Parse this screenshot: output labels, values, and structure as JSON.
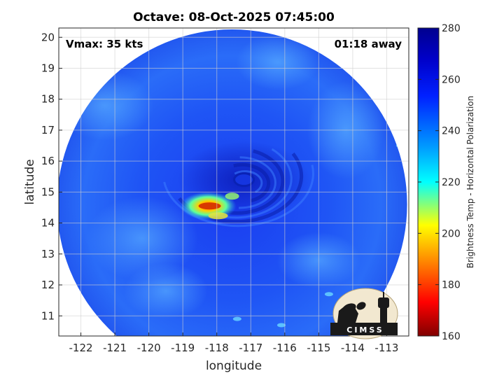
{
  "figure": {
    "title": "Octave: 08-Oct-2025 07:45:00",
    "annotations": {
      "vmax": "Vmax: 35 kts",
      "time_away": "01:18 away"
    },
    "logo_text": "CIMSS"
  },
  "map": {
    "x_axis": {
      "label": "longitude",
      "ticks": [
        -122,
        -121,
        -120,
        -119,
        -118,
        -117,
        -116,
        -115,
        -114,
        -113
      ],
      "range": [
        -122.65,
        -112.35
      ]
    },
    "y_axis": {
      "label": "latitude",
      "ticks": [
        11,
        12,
        13,
        14,
        15,
        16,
        17,
        18,
        19,
        20
      ],
      "range": [
        10.35,
        20.3
      ]
    },
    "grid": true,
    "swath": {
      "shape": "circle",
      "center_lon": -117.55,
      "center_lat": 14.6,
      "colormap": "jet"
    },
    "storm_center": {
      "lon": -117.2,
      "lat": 15.4
    },
    "cold_core": {
      "lon": -118.25,
      "lat": 14.55
    }
  },
  "colorbar": {
    "label": "Brightness Temp - Horizontal Polarization",
    "min": 160,
    "max": 280,
    "ticks": [
      160,
      180,
      200,
      220,
      240,
      260,
      280
    ],
    "colors": [
      "#800000",
      "#ff0000",
      "#ffff00",
      "#00ffff",
      "#0000ff",
      "#00008f"
    ]
  }
}
